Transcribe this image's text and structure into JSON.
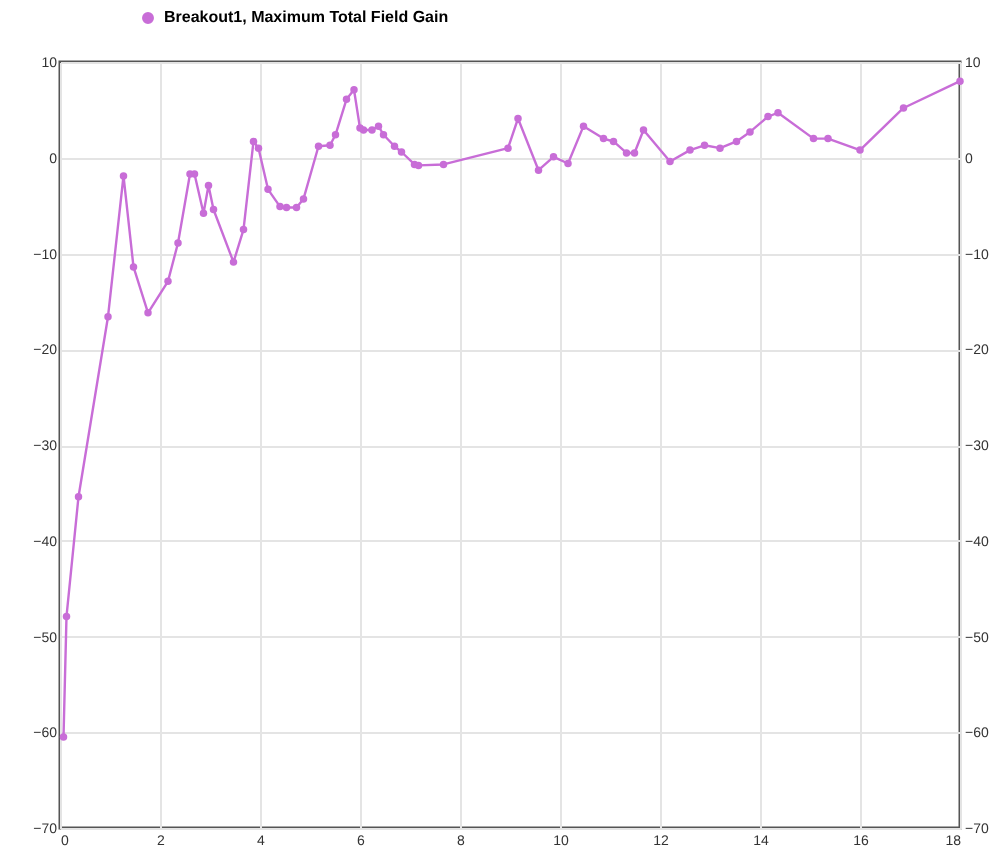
{
  "chart_data": {
    "type": "line",
    "legend": "top left",
    "grid": true,
    "marker": "circle",
    "line_style": "solid",
    "xlim": [
      0,
      18
    ],
    "xticks": [
      0,
      2,
      4,
      6,
      8,
      10,
      12,
      14,
      16,
      18
    ],
    "ylim": [
      -70,
      10
    ],
    "yticks": [
      -70,
      -60,
      -50,
      -40,
      -30,
      -20,
      -10,
      0,
      10
    ],
    "y2lim": [
      -70,
      10
    ],
    "y2ticks": [
      -70,
      -60,
      -50,
      -40,
      -30,
      -20,
      -10,
      0,
      10
    ],
    "x": [
      0.07,
      0.13,
      0.37,
      0.96,
      1.27,
      1.47,
      1.76,
      2.16,
      2.36,
      2.6,
      2.69,
      2.87,
      2.97,
      3.07,
      3.47,
      3.67,
      3.87,
      3.97,
      4.16,
      4.4,
      4.53,
      4.73,
      4.87,
      5.17,
      5.4,
      5.51,
      5.73,
      5.88,
      6.0,
      6.07,
      6.24,
      6.37,
      6.47,
      6.69,
      6.83,
      7.09,
      7.17,
      7.67,
      8.96,
      9.16,
      9.57,
      9.87,
      10.16,
      10.47,
      10.87,
      11.07,
      11.33,
      11.49,
      11.67,
      12.2,
      12.6,
      12.89,
      13.2,
      13.53,
      13.8,
      14.16,
      14.36,
      15.07,
      15.36,
      16.0,
      16.87,
      18.0
    ],
    "series": [
      {
        "name": "Breakout1, Maximum Total Field Gain",
        "color": "#c86dd7",
        "values": [
          -60.5,
          -47.9,
          -35.4,
          -16.6,
          -1.9,
          -11.4,
          -16.2,
          -12.9,
          -8.9,
          -1.7,
          -1.7,
          -5.8,
          -2.9,
          -5.4,
          -10.9,
          -7.5,
          1.7,
          1.0,
          -3.3,
          -5.1,
          -5.2,
          -5.2,
          -4.3,
          1.2,
          1.3,
          2.4,
          6.1,
          7.1,
          3.1,
          2.9,
          2.9,
          3.3,
          2.4,
          1.2,
          0.6,
          -0.7,
          -0.8,
          -0.7,
          1.0,
          4.1,
          -1.3,
          0.1,
          -0.6,
          3.3,
          2.0,
          1.7,
          0.5,
          0.5,
          2.9,
          -0.4,
          0.8,
          1.3,
          1.0,
          1.7,
          2.7,
          4.3,
          4.7,
          2.0,
          2.0,
          0.8,
          5.2,
          8.0
        ]
      }
    ]
  }
}
